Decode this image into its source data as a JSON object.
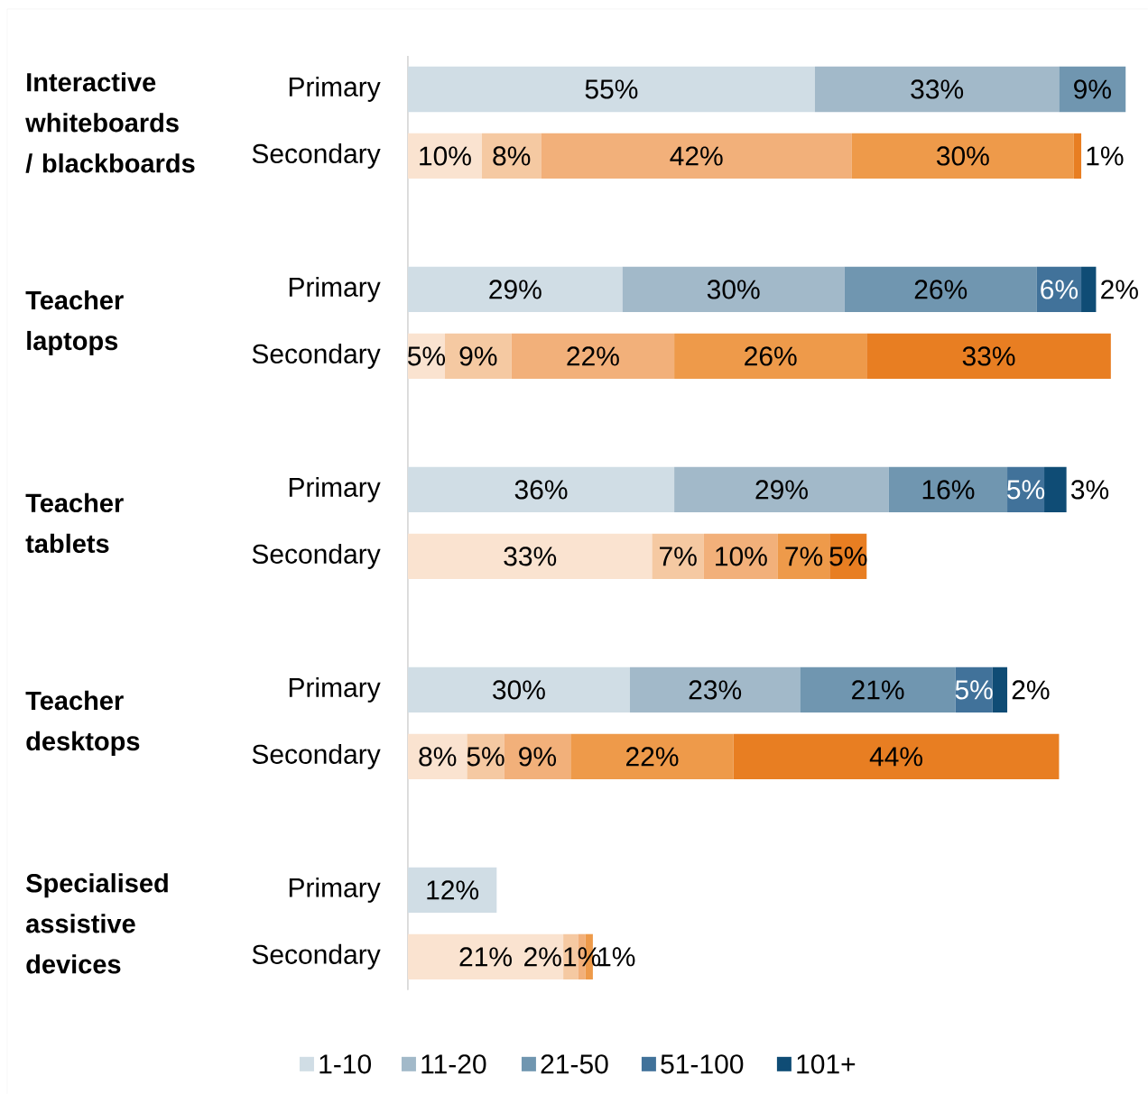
{
  "chart_data": {
    "type": "bar",
    "orientation": "horizontal",
    "stacked": true,
    "legend": "bottom",
    "categories": [
      "Primary",
      "Secondary",
      "Primary",
      "Secondary",
      "Primary",
      "Secondary",
      "Primary",
      "Secondary",
      "Primary",
      "Secondary"
    ],
    "annotations": [
      "Interactive whiteboards / blackboards",
      "Teacher laptops",
      "Teacher tablets",
      "Teacher desktops",
      "Specialised assistive devices"
    ],
    "series": [
      {
        "name": "1-10",
        "colors": [
          "#d0dde5",
          "#fae3d0",
          "#d0dde5",
          "#fae3d0",
          "#d0dde5",
          "#fae3d0",
          "#d0dde5",
          "#fae3d0",
          "#d0dde5",
          "#fae3d0"
        ],
        "values": [
          55,
          10,
          29,
          5,
          36,
          33,
          30,
          8,
          12,
          21
        ],
        "value_labels": [
          "55%",
          "10%",
          "29%",
          "5%",
          "36%",
          "33%",
          "30%",
          "8%",
          "12%",
          "21%"
        ]
      },
      {
        "name": "11-20",
        "colors": [
          "#a2b9c9",
          "#f5c9a2",
          "#a2b9c9",
          "#f5c9a2",
          "#a2b9c9",
          "#f5c9a2",
          "#a2b9c9",
          "#f5c9a2",
          "#a2b9c9",
          "#f5c9a2"
        ],
        "values": [
          33,
          8,
          30,
          9,
          29,
          7,
          23,
          5,
          null,
          2
        ],
        "value_labels": [
          "33%",
          "8%",
          "30%",
          "9%",
          "29%",
          "7%",
          "23%",
          "5%",
          null,
          "2%"
        ]
      },
      {
        "name": "21-50",
        "colors": [
          "#7096b0",
          "#f2b07a",
          "#7096b0",
          "#f2b07a",
          "#7096b0",
          "#f2b07a",
          "#7096b0",
          "#f2b07a",
          "#7096b0",
          "#f2b07a"
        ],
        "values": [
          9,
          42,
          26,
          22,
          16,
          10,
          21,
          9,
          null,
          1
        ],
        "value_labels": [
          "9%",
          "42%",
          "26%",
          "22%",
          "16%",
          "10%",
          "21%",
          "9%",
          null,
          "1%"
        ]
      },
      {
        "name": "51-100",
        "colors": [
          "#41729a",
          "#ee9a4a",
          "#41729a",
          "#ee9a4a",
          "#41729a",
          "#ee9a4a",
          "#41729a",
          "#ee9a4a",
          "#41729a",
          "#ee9a4a"
        ],
        "values": [
          null,
          30,
          6,
          26,
          5,
          7,
          5,
          22,
          null,
          1
        ],
        "value_labels": [
          null,
          "30%",
          "6%",
          "26%",
          "5%",
          "7%",
          "5%",
          "22%",
          null,
          "1%"
        ]
      },
      {
        "name": "101+",
        "colors": [
          "#0f4c75",
          "#e87e22",
          "#0f4c75",
          "#e87e22",
          "#0f4c75",
          "#e87e22",
          "#0f4c75",
          "#e87e22",
          "#0f4c75",
          "#e87e22"
        ],
        "values": [
          null,
          1,
          2,
          33,
          3,
          5,
          2,
          44,
          null,
          null
        ],
        "value_labels": [
          null,
          "1%",
          "2%",
          "33%",
          "3%",
          "5%",
          "2%",
          "44%",
          null,
          null
        ]
      }
    ]
  }
}
